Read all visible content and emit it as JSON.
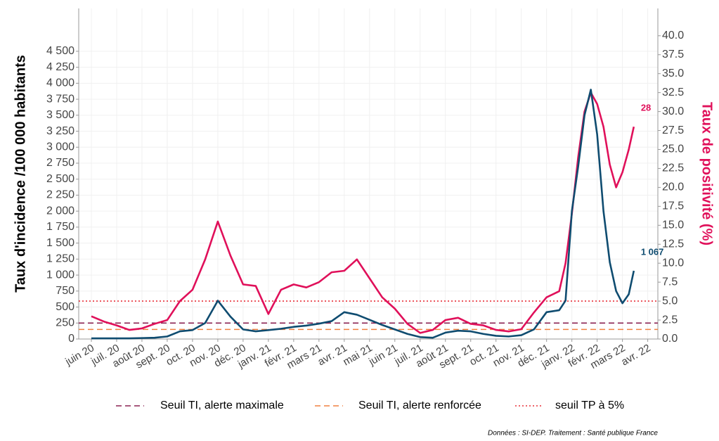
{
  "chart_data": {
    "type": "line",
    "ylabel": "Taux d'incidence /100 000 habitants",
    "y2label": "Taux de positivité (%)",
    "source": "Données : SI-DEP. Traitement : Santé publique France",
    "x": [
      0,
      0.5,
      1,
      1.5,
      2,
      2.5,
      3,
      3.5,
      4,
      4.5,
      5,
      5.5,
      6,
      6.5,
      7,
      7.5,
      8,
      8.5,
      9,
      9.5,
      10,
      10.5,
      11,
      11.5,
      12,
      12.5,
      13,
      13.5,
      14,
      14.5,
      15,
      15.5,
      16,
      16.5,
      17,
      17.5,
      18,
      18.5,
      18.75,
      19,
      19.25,
      19.5,
      19.75,
      20,
      20.25,
      20.5,
      20.75,
      21,
      21.25,
      21.45
    ],
    "xlim": [
      -0.5,
      22.4
    ],
    "xticks": [
      {
        "value": 0,
        "label": "juin 20"
      },
      {
        "value": 1,
        "label": "juil. 20"
      },
      {
        "value": 2,
        "label": "août 20"
      },
      {
        "value": 3,
        "label": "sept. 20"
      },
      {
        "value": 4,
        "label": "oct. 20"
      },
      {
        "value": 5,
        "label": "nov. 20"
      },
      {
        "value": 6,
        "label": "déc. 20"
      },
      {
        "value": 7,
        "label": "janv. 21"
      },
      {
        "value": 8,
        "label": "févr. 21"
      },
      {
        "value": 9,
        "label": "mars 21"
      },
      {
        "value": 10,
        "label": "avr. 21"
      },
      {
        "value": 11,
        "label": "mai 21"
      },
      {
        "value": 12,
        "label": "juin 21"
      },
      {
        "value": 13,
        "label": "juil. 21"
      },
      {
        "value": 14,
        "label": "août 21"
      },
      {
        "value": 15,
        "label": "sept. 21"
      },
      {
        "value": 16,
        "label": "oct. 21"
      },
      {
        "value": 17,
        "label": "nov. 21"
      },
      {
        "value": 18,
        "label": "déc. 21"
      },
      {
        "value": 19,
        "label": "janv. 22"
      },
      {
        "value": 20,
        "label": "févr. 22"
      },
      {
        "value": 21,
        "label": "mars 22"
      },
      {
        "value": 22,
        "label": "avr. 22"
      }
    ],
    "ylim": [
      0,
      5170
    ],
    "yticks": [
      0,
      250,
      500,
      750,
      {
        "value": 1000,
        "label": "1 000"
      },
      {
        "value": 1250,
        "label": "1 250"
      },
      {
        "value": 1500,
        "label": "1 500"
      },
      {
        "value": 1750,
        "label": "1 750"
      },
      {
        "value": 2000,
        "label": "2 000"
      },
      {
        "value": 2250,
        "label": "2 250"
      },
      {
        "value": 2500,
        "label": "2 500"
      },
      {
        "value": 2750,
        "label": "2 750"
      },
      {
        "value": 3000,
        "label": "3 000"
      },
      {
        "value": 3250,
        "label": "3 250"
      },
      {
        "value": 3500,
        "label": "3 500"
      },
      {
        "value": 3750,
        "label": "3 750"
      },
      {
        "value": 4000,
        "label": "4 000"
      },
      {
        "value": 4250,
        "label": "4 250"
      },
      {
        "value": 4500,
        "label": "4 500"
      }
    ],
    "y2lim": [
      0,
      43.6
    ],
    "y2ticks": [
      {
        "value": 0,
        "label": "0.0"
      },
      {
        "value": 2.5,
        "label": "2.5"
      },
      {
        "value": 5,
        "label": "5.0"
      },
      {
        "value": 7.5,
        "label": "7.5"
      },
      {
        "value": 10,
        "label": "10.0"
      },
      {
        "value": 12.5,
        "label": "12.5"
      },
      {
        "value": 15,
        "label": "15.0"
      },
      {
        "value": 17.5,
        "label": "17.5"
      },
      {
        "value": 20,
        "label": "20.0"
      },
      {
        "value": 22.5,
        "label": "22.5"
      },
      {
        "value": 25,
        "label": "25.0"
      },
      {
        "value": 27.5,
        "label": "27.5"
      },
      {
        "value": 30,
        "label": "30.0"
      },
      {
        "value": 32.5,
        "label": "32.5"
      },
      {
        "value": 35,
        "label": "35.0"
      },
      {
        "value": 37.5,
        "label": "37.5"
      },
      {
        "value": 40,
        "label": "40.0"
      }
    ],
    "grid": true,
    "series": [
      {
        "name": "Taux de positivité",
        "color": "#e0105a",
        "axis": "y2",
        "values": [
          3.0,
          2.3,
          1.8,
          1.2,
          1.4,
          2.0,
          2.5,
          5.0,
          6.5,
          10.5,
          15.5,
          11,
          7.2,
          7,
          3.3,
          6.5,
          7.2,
          6.8,
          7.5,
          8.8,
          9.0,
          10.5,
          8,
          5.5,
          4,
          2.0,
          0.8,
          1.2,
          2.5,
          2.8,
          2.0,
          1.8,
          1.2,
          1.0,
          1.3,
          3.5,
          5.5,
          6.3,
          10,
          16.5,
          24,
          30,
          32.5,
          31,
          28,
          23,
          20,
          22,
          25,
          28
        ]
      },
      {
        "name": "Taux d'incidence",
        "color": "#0f4c70",
        "axis": "y",
        "values": [
          10,
          10,
          10,
          10,
          15,
          20,
          40,
          120,
          140,
          250,
          600,
          350,
          150,
          120,
          140,
          160,
          190,
          210,
          240,
          280,
          420,
          380,
          300,
          220,
          150,
          80,
          30,
          20,
          100,
          130,
          120,
          80,
          50,
          40,
          60,
          150,
          420,
          450,
          600,
          2000,
          2700,
          3500,
          3900,
          3200,
          2000,
          1200,
          750,
          560,
          700,
          1067
        ],
        "value_labels": [
          null,
          null,
          null,
          null,
          null,
          null,
          null,
          null,
          null,
          null,
          null,
          null,
          null,
          null,
          null,
          null,
          null,
          null,
          null,
          null,
          null,
          null,
          null,
          null,
          null,
          null,
          null,
          null,
          null,
          null,
          null,
          null,
          null,
          null,
          null,
          null,
          null,
          null,
          null,
          null,
          null,
          null,
          null,
          null,
          null,
          null,
          null,
          null,
          null,
          "1 067"
        ]
      }
    ],
    "hlines": [
      {
        "name": "Seuil TI, alerte maximale",
        "value": 250,
        "axis": "y",
        "color": "#8b2252",
        "dash": "dashed"
      },
      {
        "name": "Seuil TI, alerte renforcée",
        "value": 150,
        "axis": "y",
        "color": "#f08040",
        "dash": "dashed"
      },
      {
        "name": "seuil TP à 5%",
        "value": 5,
        "axis": "y2",
        "color": "#e8303a",
        "dash": "dotted"
      }
    ]
  }
}
